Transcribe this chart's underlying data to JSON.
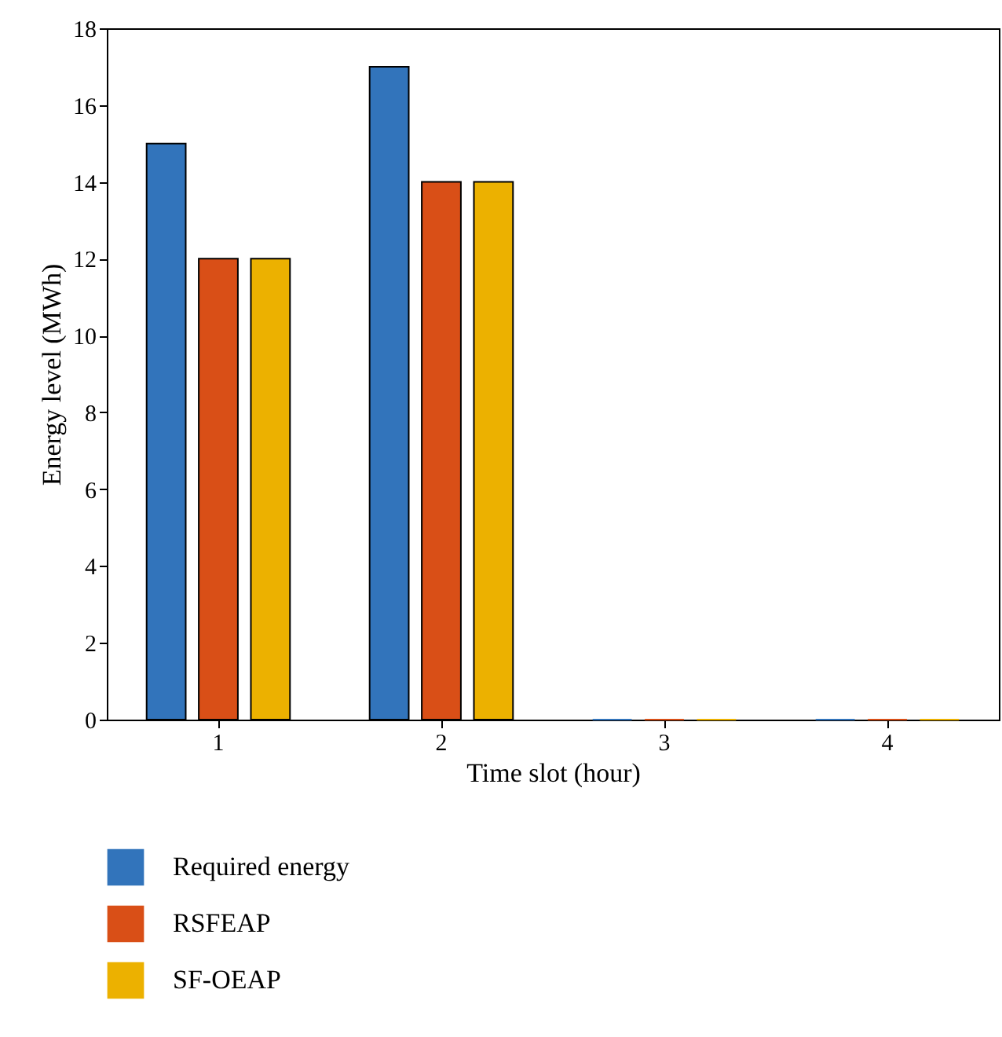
{
  "chart_data": {
    "type": "bar",
    "xlabel": "Time slot (hour)",
    "ylabel": "Energy level (MWh)",
    "categories": [
      "1",
      "2",
      "3",
      "4"
    ],
    "series": [
      {
        "name": "Required energy",
        "color": "#3274bb",
        "values": [
          15,
          17,
          0,
          0
        ]
      },
      {
        "name": "RSFEAP",
        "color": "#d94f17",
        "values": [
          12,
          14,
          0,
          0
        ]
      },
      {
        "name": "SF-OEAP",
        "color": "#ecb100",
        "values": [
          12,
          14,
          0,
          0
        ]
      }
    ],
    "ylim": [
      0,
      18
    ],
    "yticks": [
      0,
      2,
      4,
      6,
      8,
      10,
      12,
      14,
      16,
      18
    ],
    "grid": false,
    "legend": "bottom"
  }
}
